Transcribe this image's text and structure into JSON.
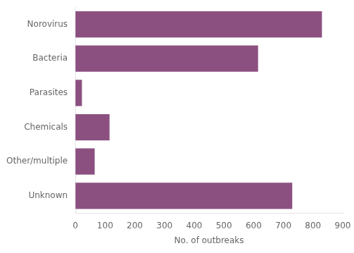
{
  "chart_data": {
    "type": "bar",
    "orientation": "horizontal",
    "categories": [
      "Unknown",
      "Other/multiple",
      "Chemicals",
      "Parasites",
      "Bacteria",
      "Norovirus"
    ],
    "values": [
      730,
      65,
      115,
      22,
      615,
      830
    ],
    "color": "#8B5080",
    "xlabel": "No. of outbreaks",
    "xlim": [
      0,
      900
    ],
    "xticks": [
      0,
      100,
      200,
      300,
      400,
      500,
      600,
      700,
      800,
      900
    ],
    "grid": false
  }
}
